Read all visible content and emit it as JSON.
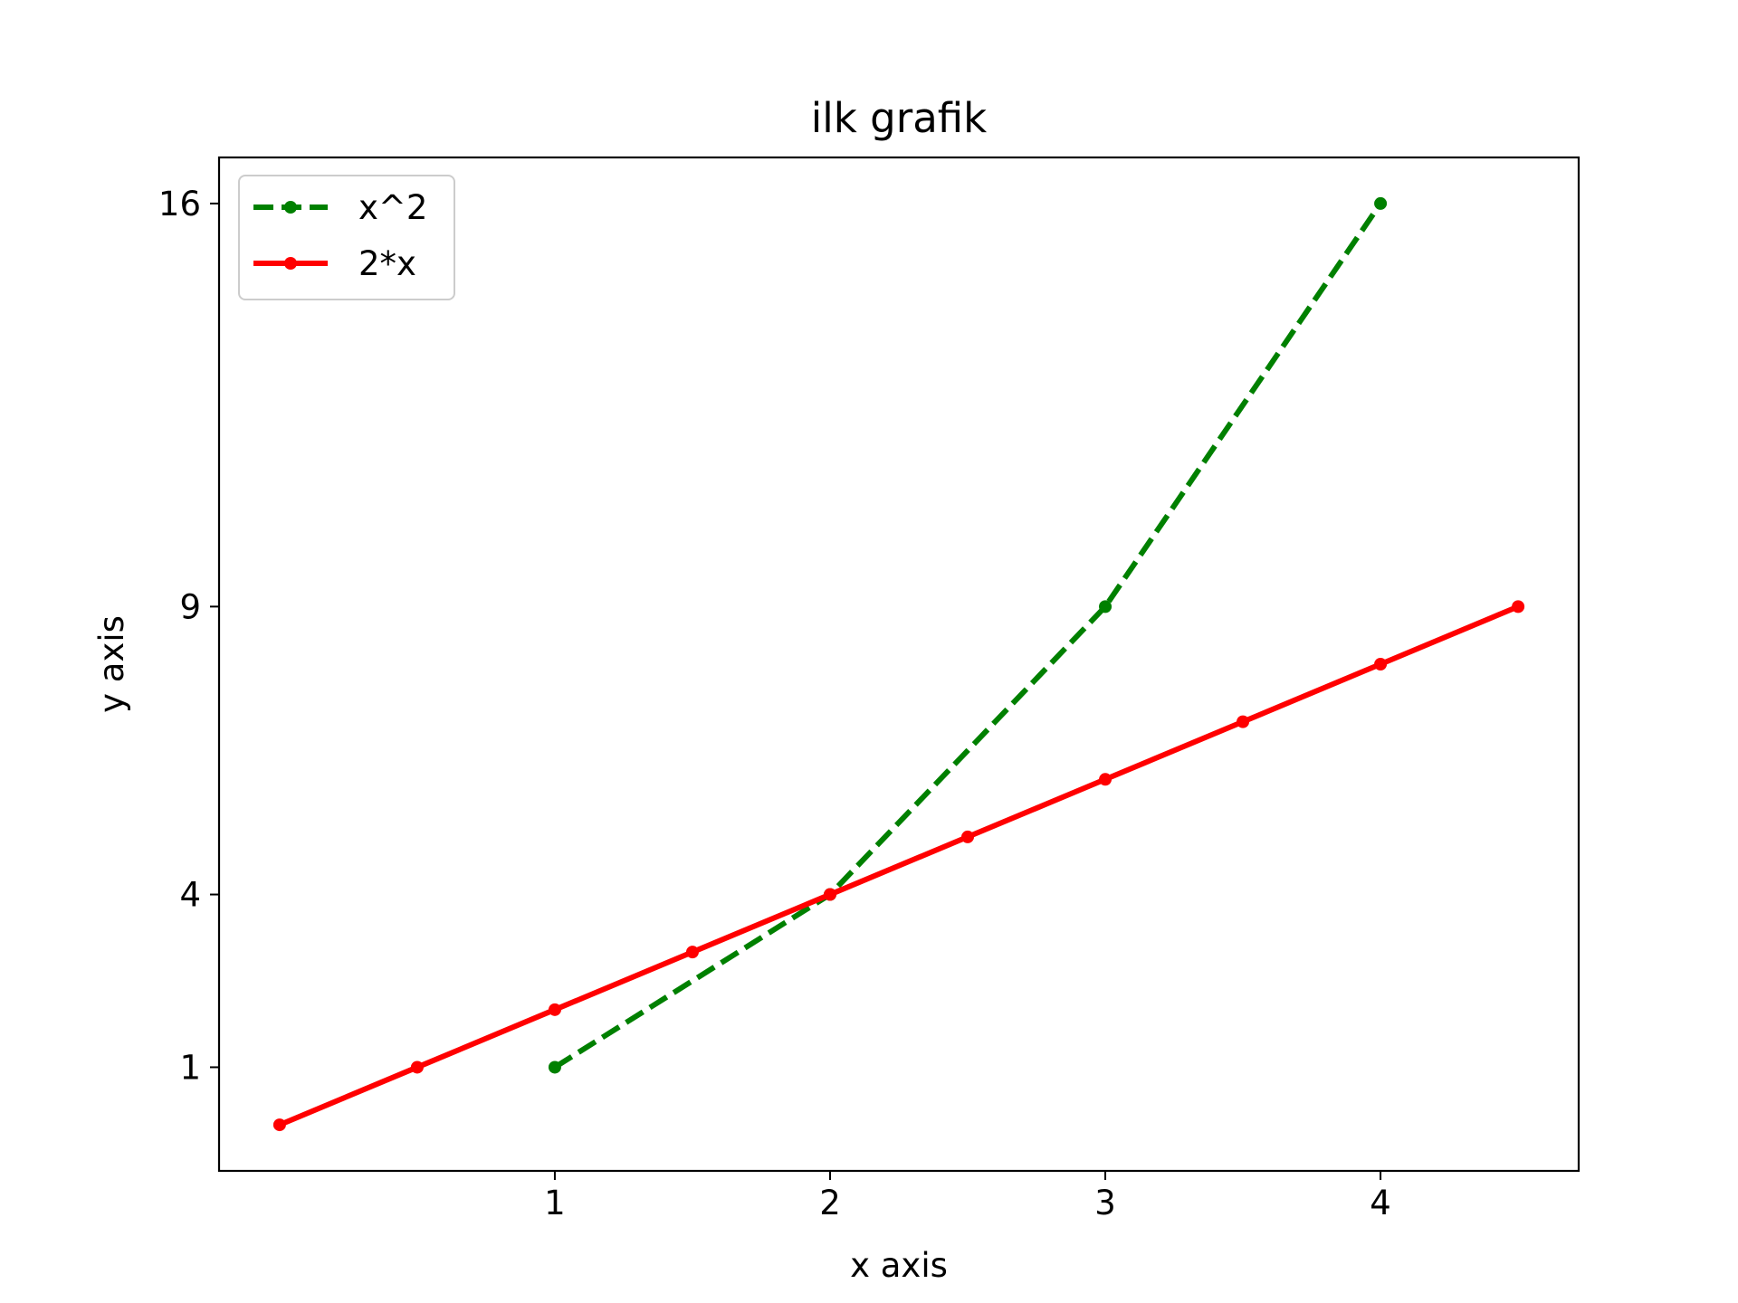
{
  "chart_data": {
    "type": "line",
    "title": "ilk grafik",
    "xlabel": "x axis",
    "ylabel": "y axis",
    "xlim": [
      -0.22,
      4.72
    ],
    "ylim": [
      -0.8,
      16.8
    ],
    "xticks": [
      1,
      2,
      3,
      4
    ],
    "yticks": [
      1,
      4,
      9,
      16
    ],
    "grid": false,
    "legend_position": "upper left",
    "series": [
      {
        "name": "x^2",
        "color": "#008000",
        "line_style": "dashed",
        "marker": "circle",
        "x": [
          1,
          2,
          3,
          4
        ],
        "y": [
          1,
          4,
          9,
          16
        ]
      },
      {
        "name": "2*x",
        "color": "#ff0000",
        "line_style": "solid",
        "marker": "circle",
        "x": [
          0,
          0.5,
          1,
          1.5,
          2,
          2.5,
          3,
          3.5,
          4,
          4.5
        ],
        "y": [
          0,
          1,
          2,
          3,
          4,
          5,
          6,
          7,
          8,
          9
        ]
      }
    ]
  }
}
